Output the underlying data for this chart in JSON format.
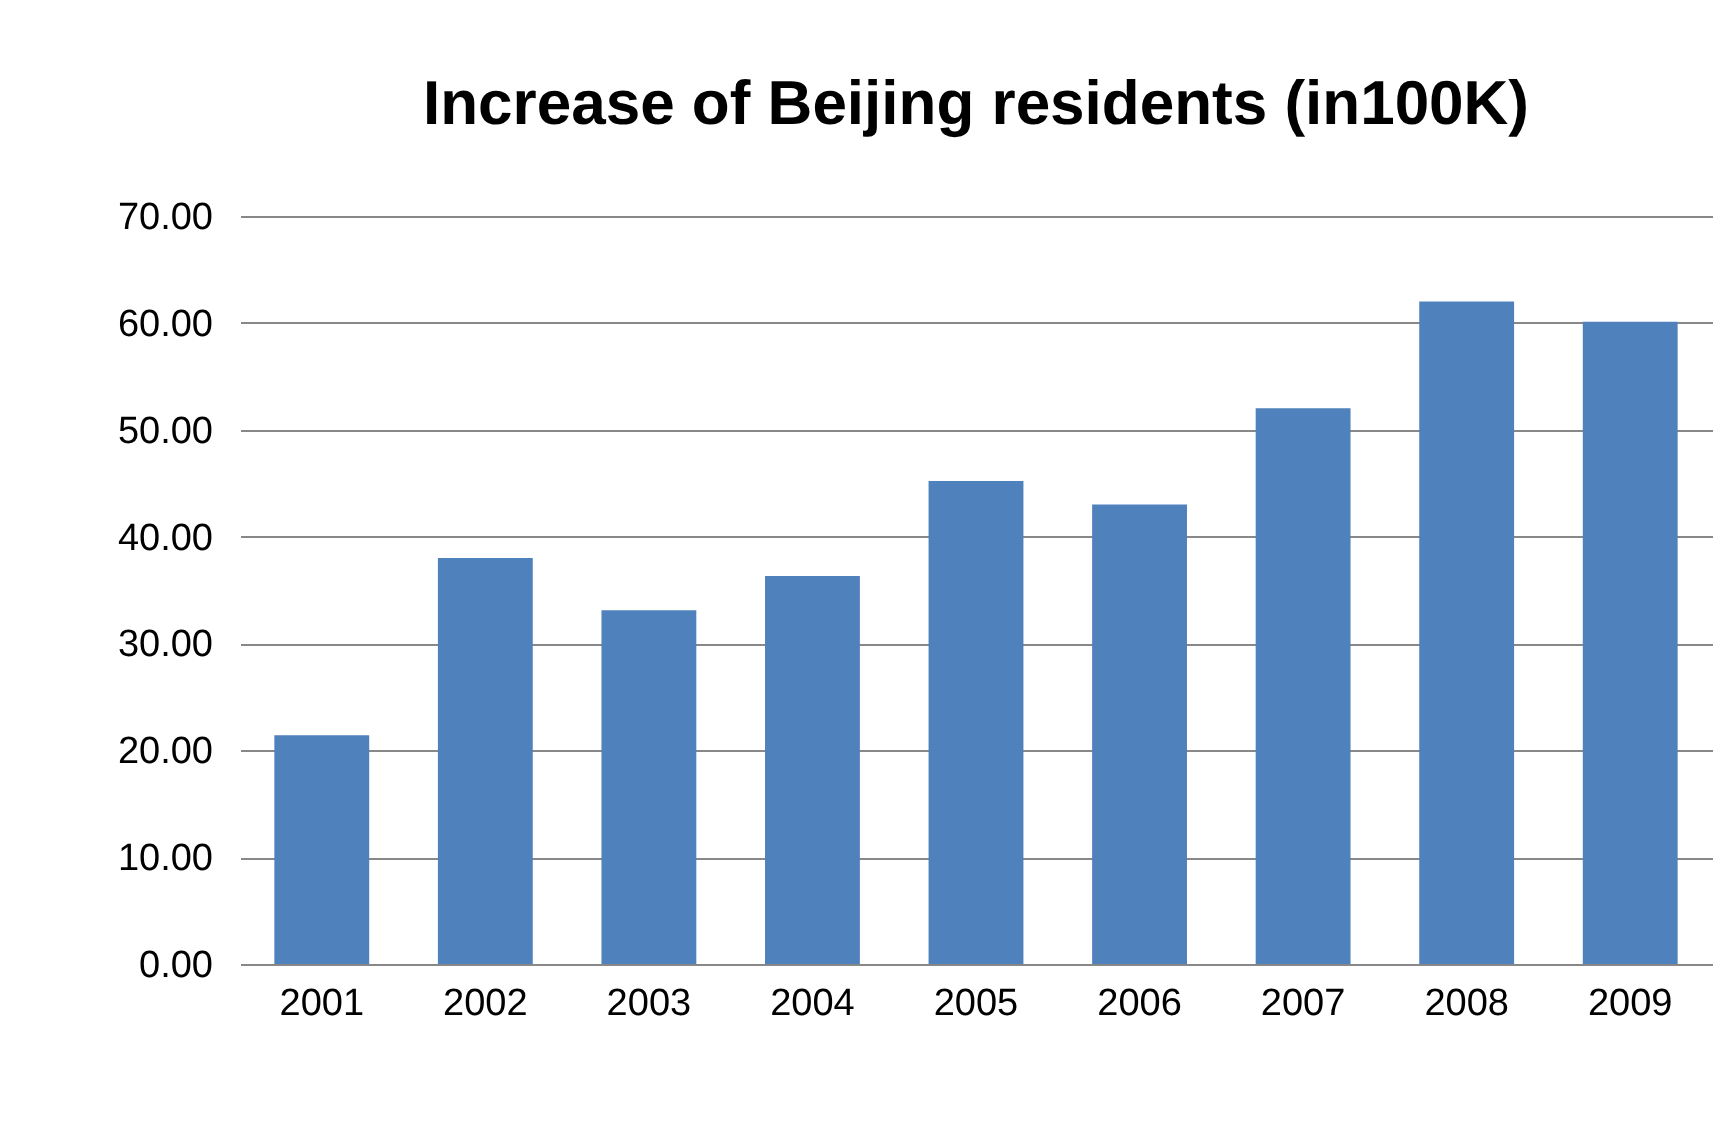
{
  "chart_data": {
    "type": "bar",
    "title": "Increase of Beijing residents (in100K)",
    "categories": [
      "2001",
      "2002",
      "2003",
      "2004",
      "2005",
      "2006",
      "2007",
      "2008",
      "2009"
    ],
    "values": [
      21.4,
      38.0,
      33.1,
      36.3,
      45.2,
      43.0,
      52.0,
      62.0,
      60.1
    ],
    "color": "#4f81bd",
    "ylim": [
      0,
      70
    ],
    "yticks": [
      {
        "value": 0,
        "label": "0.00"
      },
      {
        "value": 10,
        "label": "10.00"
      },
      {
        "value": 20,
        "label": "20.00"
      },
      {
        "value": 30,
        "label": "30.00"
      },
      {
        "value": 40,
        "label": "40.00"
      },
      {
        "value": 50,
        "label": "50.00"
      },
      {
        "value": 60,
        "label": "60.00"
      },
      {
        "value": 70,
        "label": "70.00"
      }
    ],
    "grid": "y"
  }
}
